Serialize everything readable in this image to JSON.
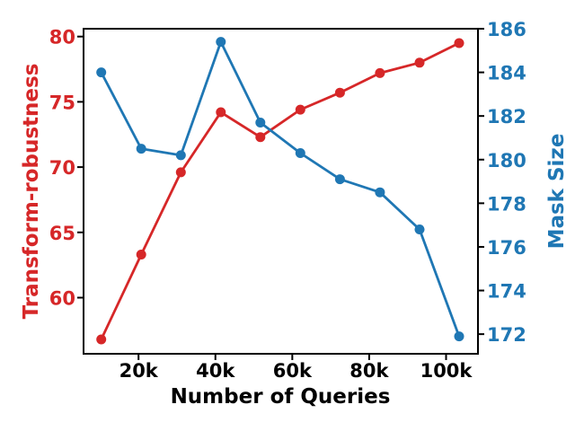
{
  "figure": {
    "background": "#ffffff",
    "frame_color": "#000000"
  },
  "chart_data": {
    "type": "line",
    "title": "",
    "xlabel": "Number of Queries",
    "x": [
      10300,
      20700,
      31000,
      41400,
      51700,
      62100,
      72400,
      82800,
      93100,
      103400
    ],
    "xlim": [
      5700,
      108300
    ],
    "x_ticks": {
      "values": [
        20000,
        40000,
        60000,
        80000,
        100000
      ],
      "labels": [
        "20k",
        "40k",
        "60k",
        "80k",
        "100k"
      ],
      "color": "#000000"
    },
    "axes": {
      "left": {
        "label": "Transform-robustness",
        "color": "#d62728",
        "lim": [
          55.7,
          80.6
        ],
        "tick_values": [
          60,
          65,
          70,
          75,
          80
        ],
        "tick_labels": [
          "60",
          "65",
          "70",
          "75",
          "80"
        ]
      },
      "right": {
        "label": "Mask Size",
        "color": "#1f77b4",
        "lim": [
          171.1,
          186.0
        ],
        "tick_values": [
          172,
          174,
          176,
          178,
          180,
          182,
          184,
          186
        ],
        "tick_labels": [
          "172",
          "174",
          "176",
          "178",
          "180",
          "182",
          "184",
          "186"
        ]
      }
    },
    "series": [
      {
        "name": "Transform-robustness",
        "axis": "left",
        "color": "#d62728",
        "marker": "circle",
        "values": [
          56.8,
          63.3,
          69.6,
          74.2,
          72.3,
          74.4,
          75.7,
          77.2,
          78.0,
          79.5
        ]
      },
      {
        "name": "Mask Size",
        "axis": "right",
        "color": "#1f77b4",
        "marker": "circle",
        "values": [
          184.0,
          180.5,
          180.2,
          185.4,
          181.7,
          180.3,
          179.1,
          178.5,
          176.8,
          171.9
        ]
      }
    ],
    "grid": false,
    "legend": null
  }
}
